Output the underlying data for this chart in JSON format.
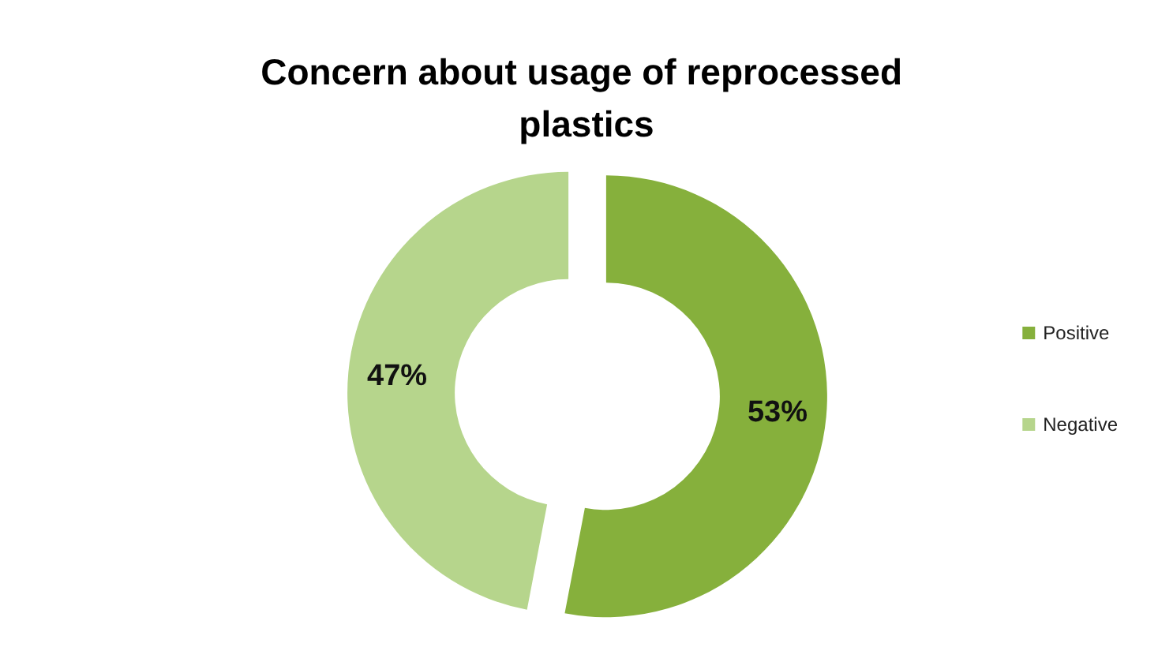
{
  "chart_data": {
    "type": "donut",
    "title": "Concern about usage of reprocessed plastics",
    "categories": [
      "Positive",
      "Negative"
    ],
    "values": [
      53,
      47
    ],
    "colors": [
      "#86b03c",
      "#b6d58c"
    ],
    "value_labels": [
      "53%",
      "47%"
    ],
    "legend": "right"
  }
}
